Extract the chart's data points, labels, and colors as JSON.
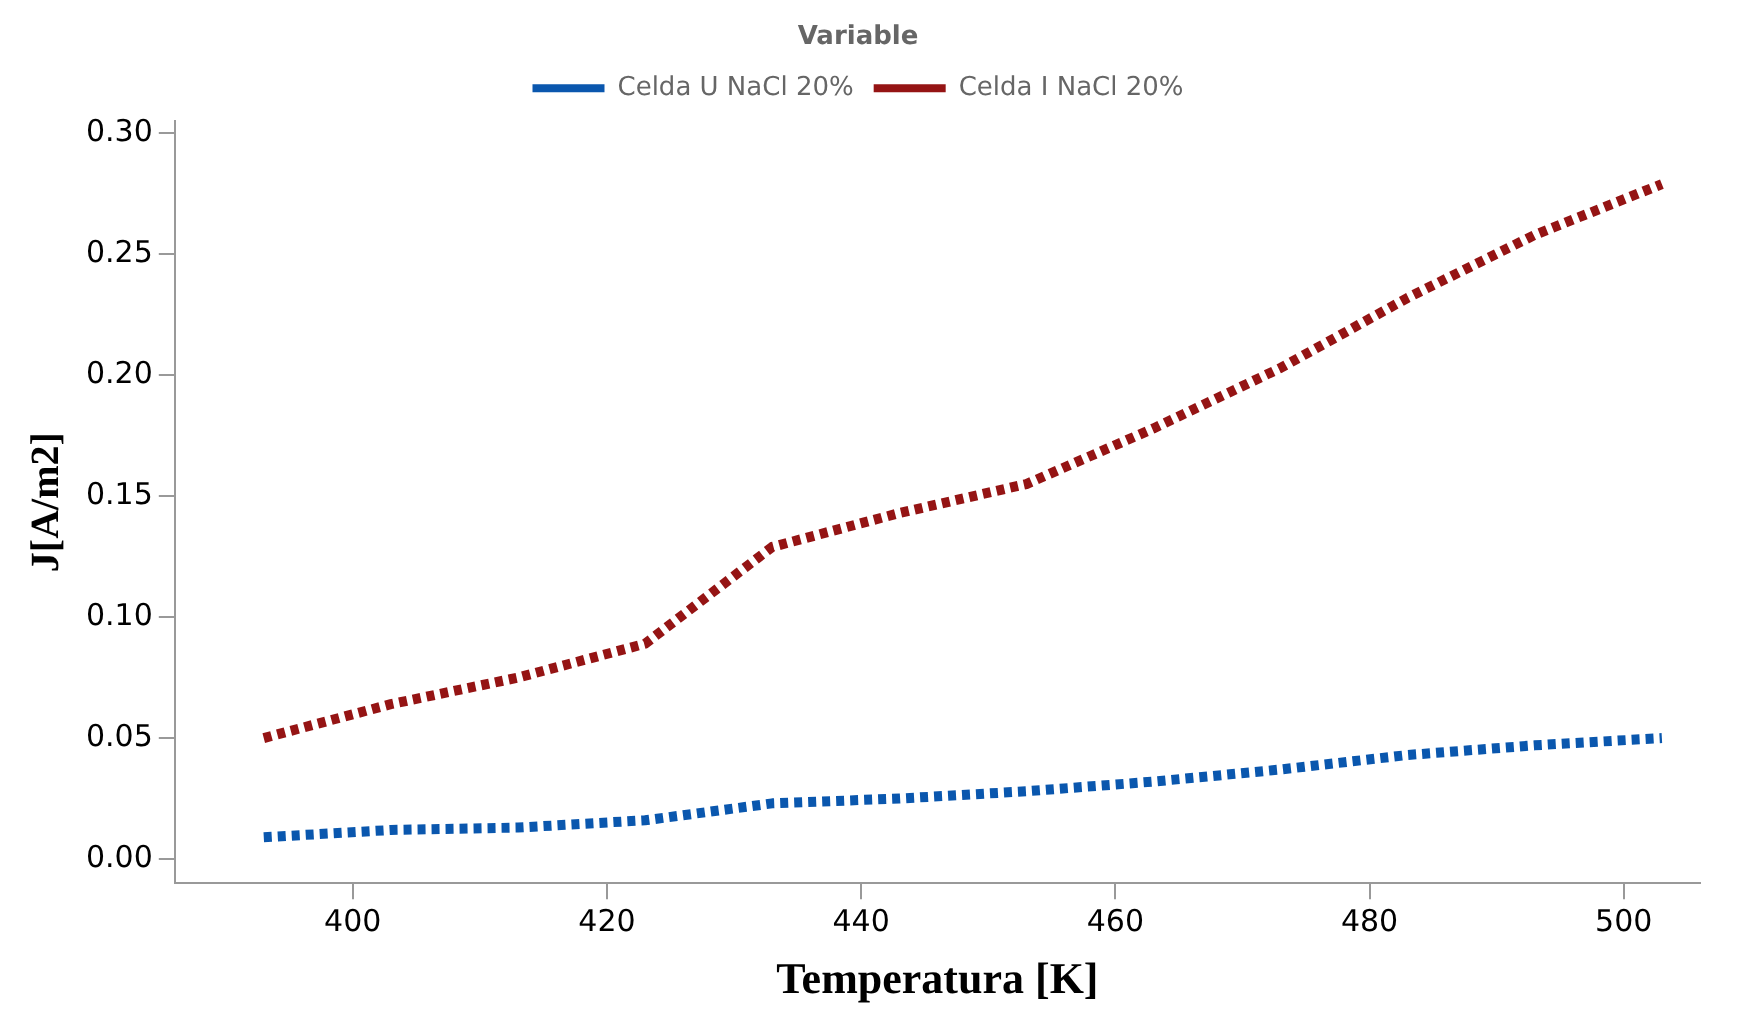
{
  "chart_data": {
    "type": "line",
    "xlabel": "Temperatura [K]",
    "ylabel": "J[A/m2]",
    "legend_title": "Variable",
    "legend": "top",
    "line_style": "dotted",
    "marker": "none",
    "grid": false,
    "x": [
      393,
      403,
      413,
      423,
      433,
      443,
      453,
      463,
      473,
      483,
      493,
      503
    ],
    "xlim": [
      386,
      506
    ],
    "xticks": [
      400,
      420,
      440,
      460,
      480,
      500
    ],
    "ylim": [
      -0.01,
      0.305
    ],
    "yticks": [
      {
        "value": 0,
        "label": "0.00"
      },
      {
        "value": 0.05,
        "label": "0.05"
      },
      {
        "value": 0.1,
        "label": "0.10"
      },
      {
        "value": 0.15,
        "label": "0.15"
      },
      {
        "value": 0.2,
        "label": "0.20"
      },
      {
        "value": 0.25,
        "label": "0.25"
      },
      {
        "value": 0.3,
        "label": "0.30"
      }
    ],
    "series": [
      {
        "name": "Celda U NaCl 20%",
        "color": "#0a57ae",
        "values": [
          0.009,
          0.012,
          0.013,
          0.016,
          0.023,
          0.025,
          0.028,
          0.032,
          0.037,
          0.043,
          0.047,
          0.05
        ]
      },
      {
        "name": "Celda I NaCl 20%",
        "color": "#951414",
        "values": [
          0.05,
          0.064,
          0.075,
          0.089,
          0.129,
          0.143,
          0.155,
          0.178,
          0.203,
          0.232,
          0.258,
          0.279
        ]
      }
    ]
  }
}
